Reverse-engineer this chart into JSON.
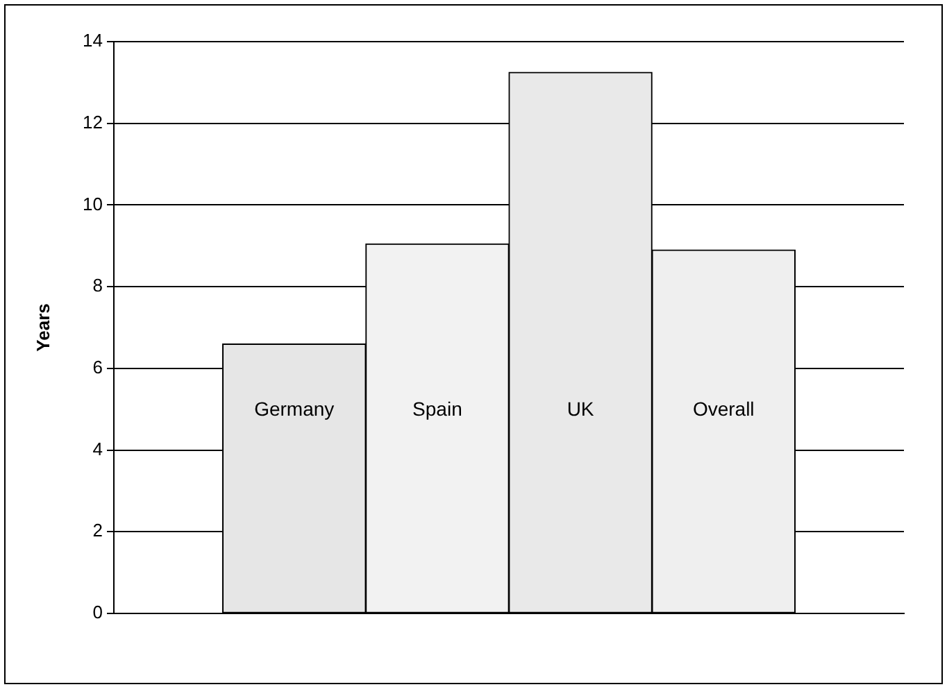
{
  "chart_data": {
    "type": "bar",
    "ylabel": "Years",
    "categories": [
      "Germany",
      "Spain",
      "UK",
      "Overall"
    ],
    "values": [
      6.6,
      9.05,
      13.25,
      8.9
    ],
    "colors": [
      "#e6e6e6",
      "#f2f2f2",
      "#e9e9e9",
      "#efefef"
    ],
    "ylim": [
      0,
      14
    ],
    "yticks": [
      0,
      2,
      4,
      6,
      8,
      10,
      12,
      14
    ],
    "grid": "y"
  }
}
